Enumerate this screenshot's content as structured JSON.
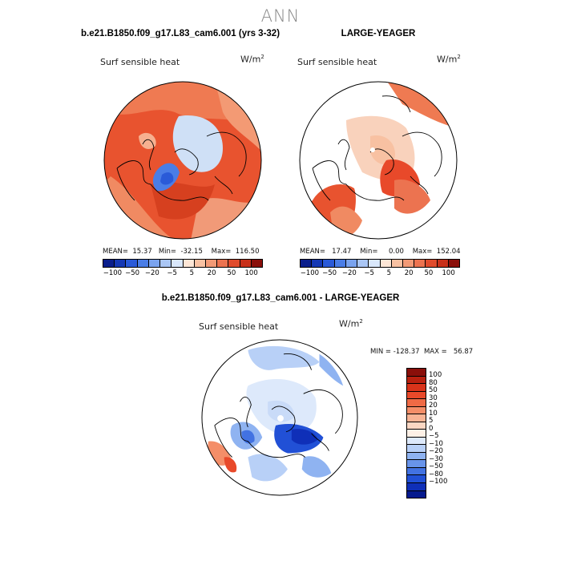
{
  "title": "ANN",
  "panels": [
    {
      "case_title": "b.e21.B1850.f09_g17.L83_cam6.001 (yrs 3-32)",
      "variable": "Surf sensible heat",
      "unit_base": "W/m",
      "unit_exp": "2",
      "stats_line": "MEAN=  15.37   Min=  -32.15    Max=  116.50"
    },
    {
      "case_title": "LARGE-YEAGER",
      "variable": "Surf sensible heat",
      "unit_base": "W/m",
      "unit_exp": "2",
      "stats_line": "MEAN=   17.47    Min=     0.00    Max=  152.04"
    },
    {
      "case_title": "b.e21.B1850.f09_g17.L83_cam6.001 - LARGE-YEAGER",
      "variable": "Surf sensible heat",
      "unit_base": "W/m",
      "unit_exp": "2",
      "stats_line": "MIN = -128.37  MAX =   56.87"
    }
  ],
  "colorbar_top": {
    "colors": [
      "#0a1e8c",
      "#1538b4",
      "#2a5ad8",
      "#4a7de6",
      "#7aa3ee",
      "#aac6f4",
      "#d9e7fb",
      "#fde6d6",
      "#f8c1a2",
      "#f29a76",
      "#ec7350",
      "#e04b2c",
      "#c8301a",
      "#8a0f0a"
    ],
    "labels": [
      "-100",
      "-50",
      "-20",
      "-5",
      "5",
      "20",
      "50",
      "100"
    ]
  },
  "colorbar_diff": {
    "colors": [
      "#8a0f0a",
      "#b9200f",
      "#d9331a",
      "#e8492a",
      "#ef6a45",
      "#f48e68",
      "#f8b495",
      "#fbd7c3",
      "#fdf0e6",
      "#dde9fb",
      "#b8d0f7",
      "#8fb3f1",
      "#6894ea",
      "#4272e2",
      "#2150d6",
      "#0f2fb8",
      "#061a8e"
    ],
    "labels": [
      "100",
      "80",
      "50",
      "30",
      "20",
      "10",
      "5",
      "0",
      "-5",
      "-10",
      "-20",
      "-30",
      "-50",
      "-80",
      "-100"
    ]
  }
}
